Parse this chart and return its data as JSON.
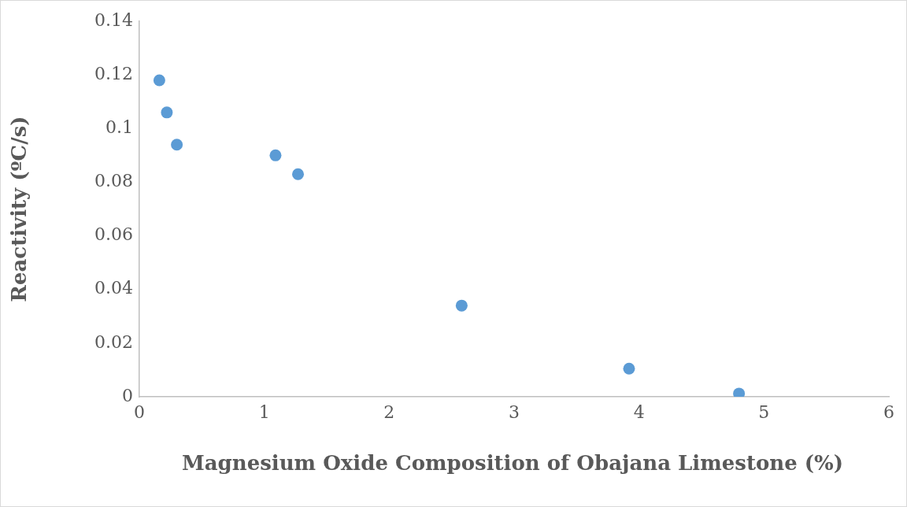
{
  "chart_data": {
    "type": "scatter",
    "xlabel": "Magnesium Oxide Composition of Obajana Limestone (%)",
    "ylabel": "Reactivity (ºC/s)",
    "x": [
      0.16,
      0.22,
      0.3,
      1.09,
      1.27,
      2.58,
      3.92,
      4.8
    ],
    "series": [
      {
        "color": "#5b9bd5",
        "values": [
          0.118,
          0.106,
          0.094,
          0.09,
          0.083,
          0.034,
          0.0105,
          0.0012
        ]
      }
    ],
    "xlim": [
      0,
      6
    ],
    "xticks": [
      0,
      1,
      2,
      3,
      4,
      5,
      6
    ],
    "ylim": [
      0,
      0.14
    ],
    "yticks": [
      0,
      0.02,
      0.04,
      0.06,
      0.08,
      0.1,
      0.12,
      0.14
    ],
    "grid": false,
    "legend": false,
    "marker": "circle"
  }
}
